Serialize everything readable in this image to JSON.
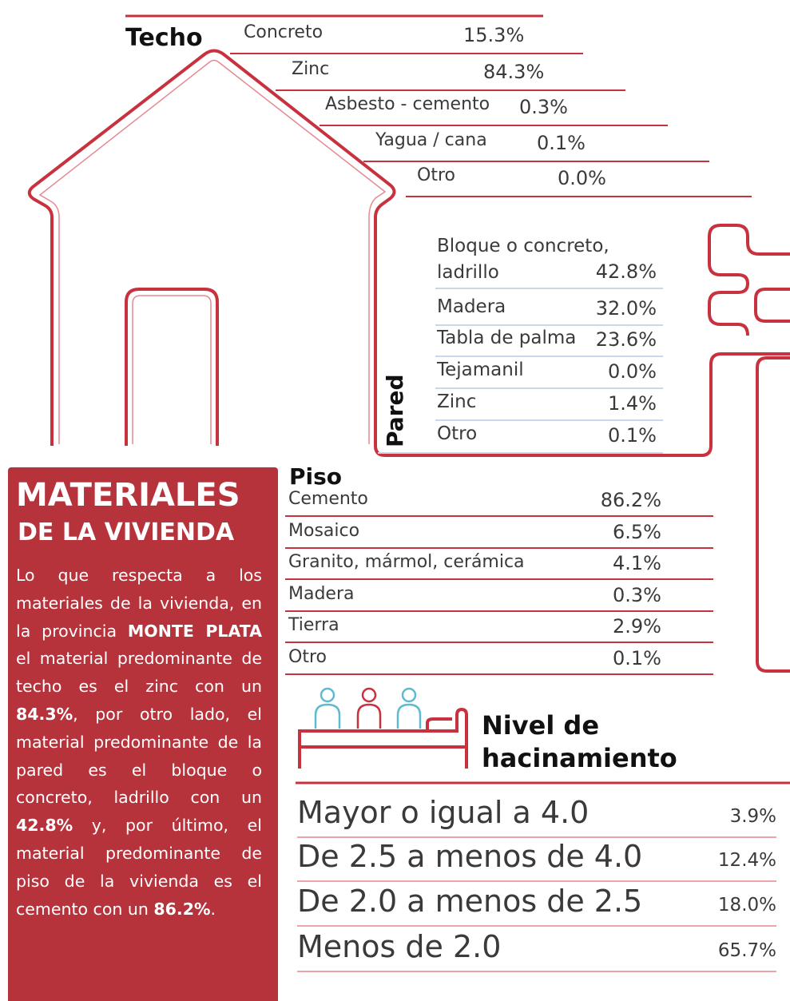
{
  "techo": {
    "title": "Techo",
    "rows": [
      {
        "label": "Concreto",
        "value": "15.3%"
      },
      {
        "label": "Zinc",
        "value": "84.3%"
      },
      {
        "label": "Asbesto - cemento",
        "value": "0.3%"
      },
      {
        "label": "Yagua / cana",
        "value": "0.1%"
      },
      {
        "label": "Otro",
        "value": "0.0%"
      }
    ]
  },
  "pared": {
    "title": "Pared",
    "rows": [
      {
        "label": "Bloque o concreto, ladrillo",
        "value": "42.8%"
      },
      {
        "label": "Madera",
        "value": "32.0%"
      },
      {
        "label": "Tabla de palma",
        "value": "23.6%"
      },
      {
        "label": "Tejamanil",
        "value": "0.0%"
      },
      {
        "label": "Zinc",
        "value": "1.4%"
      },
      {
        "label": "Otro",
        "value": "0.1%"
      }
    ]
  },
  "side_box": {
    "title_1": "MATERIALES",
    "title_2": "DE LA VIVIENDA",
    "paragraph": [
      "Lo que respecta a los materiales de la vivienda, en la provincia ",
      "MONTE PLATA",
      " el material predominante de techo es el zinc con un ",
      "84.3%",
      ", por otro lado, el material predominante de la pared es el bloque o concreto, ladrillo con un ",
      "42.8%",
      " y, por último, el material predominante de piso de la vivienda es el cemento con un ",
      "86.2%",
      "."
    ]
  },
  "piso": {
    "title": "Piso",
    "rows": [
      {
        "label": "Cemento",
        "value": "86.2%"
      },
      {
        "label": "Mosaico",
        "value": "6.5%"
      },
      {
        "label": "Granito, mármol, cerámica",
        "value": "4.1%"
      },
      {
        "label": "Madera",
        "value": "0.3%"
      },
      {
        "label": "Tierra",
        "value": "2.9%"
      },
      {
        "label": "Otro",
        "value": "0.1%"
      }
    ]
  },
  "hacinamiento": {
    "title": "Nivel de hacinamiento",
    "rows": [
      {
        "label": "Mayor o igual a 4.0",
        "value": "3.9%"
      },
      {
        "label": "De 2.5 a menos de 4.0",
        "value": "12.4%"
      },
      {
        "label": "De 2.0 a menos de 2.5",
        "value": "18.0%"
      },
      {
        "label": "Menos de 2.0",
        "value": "65.7%"
      }
    ]
  }
}
